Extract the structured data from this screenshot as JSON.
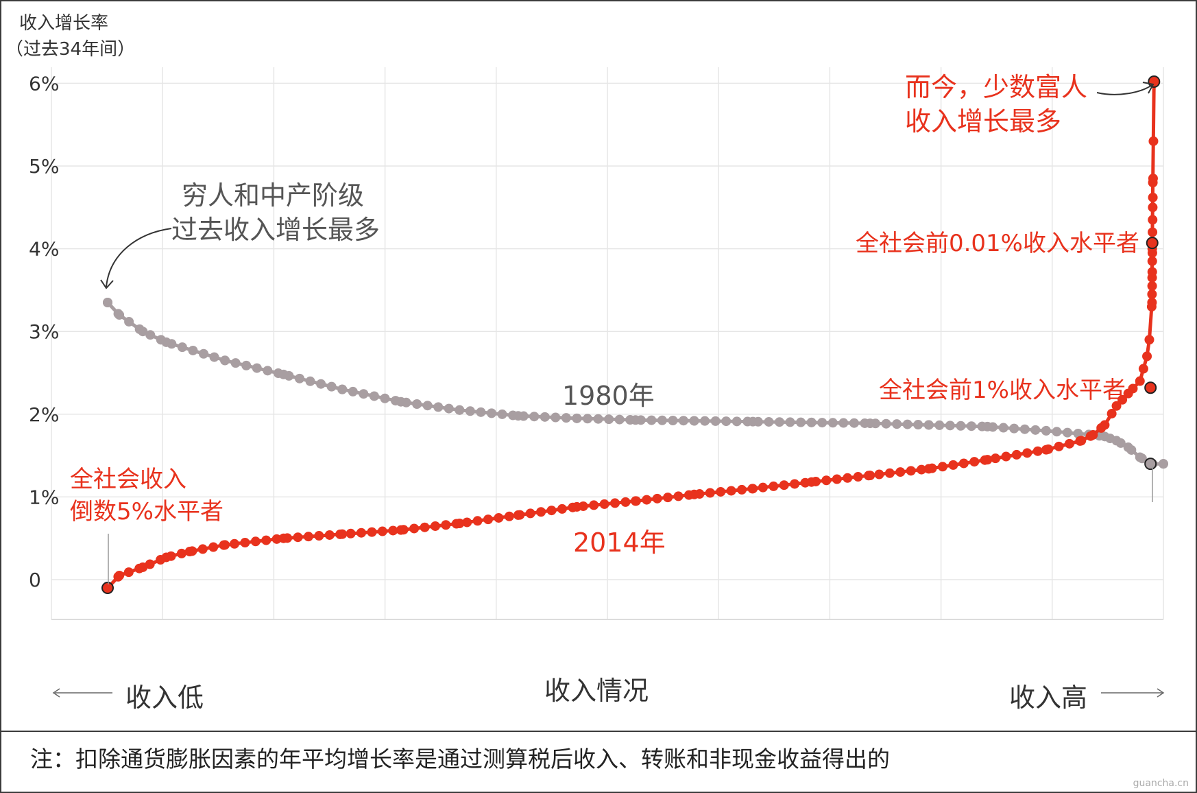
{
  "chart_data": {
    "type": "line",
    "ylabel_line1": "收入增长率",
    "ylabel_line2": "（过去34年间）",
    "xlabel": "收入情况",
    "x_low_label": "收入低",
    "x_high_label": "收入高",
    "y_ticks": [
      {
        "value": 0,
        "label": "0"
      },
      {
        "value": 1,
        "label": "1%"
      },
      {
        "value": 2,
        "label": "2%"
      },
      {
        "value": 3,
        "label": "3%"
      },
      {
        "value": 4,
        "label": "4%"
      },
      {
        "value": 5,
        "label": "5%"
      },
      {
        "value": 6,
        "label": "6%"
      }
    ],
    "ylim": [
      -0.45,
      6.2
    ],
    "xlim": [
      0,
      100
    ],
    "grid": true,
    "series": [
      {
        "name": "1980年",
        "color": "#a89ea1",
        "anchors": [
          [
            5,
            3.35
          ],
          [
            6,
            3.2
          ],
          [
            8,
            3.0
          ],
          [
            10,
            2.87
          ],
          [
            15,
            2.65
          ],
          [
            20,
            2.48
          ],
          [
            25,
            2.3
          ],
          [
            30,
            2.15
          ],
          [
            35,
            2.05
          ],
          [
            40,
            1.98
          ],
          [
            45,
            1.95
          ],
          [
            50,
            1.93
          ],
          [
            55,
            1.92
          ],
          [
            60,
            1.91
          ],
          [
            65,
            1.9
          ],
          [
            70,
            1.89
          ],
          [
            75,
            1.87
          ],
          [
            80,
            1.85
          ],
          [
            85,
            1.8
          ],
          [
            89,
            1.75
          ],
          [
            90,
            1.73
          ],
          [
            91,
            1.68
          ],
          [
            92,
            1.6
          ],
          [
            93,
            1.48
          ],
          [
            94,
            1.4
          ],
          [
            95,
            1.4
          ]
        ],
        "n_points": 100,
        "cluster": []
      },
      {
        "name": "2014年",
        "color": "#e8321d",
        "anchors": [
          [
            5,
            -0.1
          ],
          [
            6,
            0.05
          ],
          [
            8,
            0.15
          ],
          [
            10,
            0.27
          ],
          [
            12,
            0.34
          ],
          [
            15,
            0.42
          ],
          [
            20,
            0.5
          ],
          [
            25,
            0.55
          ],
          [
            30,
            0.6
          ],
          [
            35,
            0.68
          ],
          [
            40,
            0.78
          ],
          [
            45,
            0.88
          ],
          [
            50,
            0.95
          ],
          [
            55,
            1.03
          ],
          [
            60,
            1.1
          ],
          [
            65,
            1.18
          ],
          [
            70,
            1.26
          ],
          [
            75,
            1.34
          ],
          [
            80,
            1.45
          ],
          [
            85,
            1.57
          ],
          [
            88,
            1.68
          ],
          [
            89,
            1.75
          ],
          [
            90,
            1.87
          ],
          [
            91,
            2.1
          ],
          [
            92,
            2.25
          ],
          [
            93,
            2.4
          ],
          [
            93.6,
            2.7
          ],
          [
            93.8,
            2.9
          ],
          [
            94,
            3.3
          ],
          [
            94.05,
            4.0
          ],
          [
            94.1,
            4.8
          ],
          [
            94.2,
            6.02
          ]
        ],
        "n_points": 100,
        "cluster": [
          [
            94.03,
            3.35
          ],
          [
            94.03,
            3.45
          ],
          [
            94.04,
            3.55
          ],
          [
            94.04,
            3.65
          ],
          [
            94.05,
            3.72
          ],
          [
            94.05,
            3.85
          ],
          [
            94.06,
            3.95
          ],
          [
            94.07,
            4.2
          ],
          [
            94.08,
            4.35
          ],
          [
            94.09,
            4.5
          ],
          [
            94.1,
            4.62
          ],
          [
            94.12,
            4.85
          ],
          [
            94.15,
            5.3
          ]
        ]
      }
    ],
    "highlight_points": [
      {
        "series": "2014年",
        "x": 5,
        "y": -0.1
      },
      {
        "series": "2014年",
        "x": 93.9,
        "y": 2.32
      },
      {
        "series": "2014年",
        "x": 94.05,
        "y": 4.07
      },
      {
        "series": "2014年",
        "x": 94.2,
        "y": 6.02
      },
      {
        "series": "1980年",
        "x": 93.9,
        "y": 1.4
      }
    ],
    "annotations": {
      "series_1980_label": "1980年",
      "series_2014_label": "2014年",
      "poor_middle_line1": "穷人和中产阶级",
      "poor_middle_line2": "过去收入增长最多",
      "rich_line1": "而今，少数富人",
      "rich_line2": "收入增长最多",
      "bottom5_line1": "全社会收入",
      "bottom5_line2": "倒数5%水平者",
      "top1": "全社会前1%收入水平者",
      "top001": "全社会前0.01%收入水平者"
    },
    "colors": {
      "red": "#e8321d",
      "gray_series": "#a89ea1",
      "text": "#333333",
      "grid": "#e6e6e6"
    }
  },
  "footnote": "注：扣除通货膨胀因素的年平均增长率是通过测算税后收入、转账和非现金收益得出的",
  "watermark": "guancha.cn"
}
